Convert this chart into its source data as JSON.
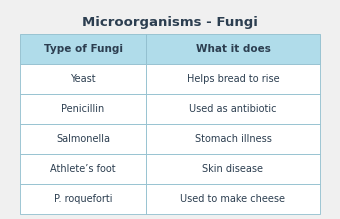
{
  "title": "Microorganisms - Fungi",
  "header": [
    "Type of Fungi",
    "What it does"
  ],
  "rows": [
    [
      "Yeast",
      "Helps bread to rise"
    ],
    [
      "Penicillin",
      "Used as antibiotic"
    ],
    [
      "Salmonella",
      "Stomach illness"
    ],
    [
      "Athlete’s foot",
      "Skin disease"
    ],
    [
      "P. roqueforti",
      "Used to make cheese"
    ]
  ],
  "header_bg": "#b0dcea",
  "row_bg": "#ffffff",
  "border_color": "#90bece",
  "title_color": "#2c3e50",
  "text_color": "#2c3e50",
  "bg_color": "#f0f0f0",
  "title_fontsize": 9.5,
  "header_fontsize": 7.5,
  "row_fontsize": 7.0
}
